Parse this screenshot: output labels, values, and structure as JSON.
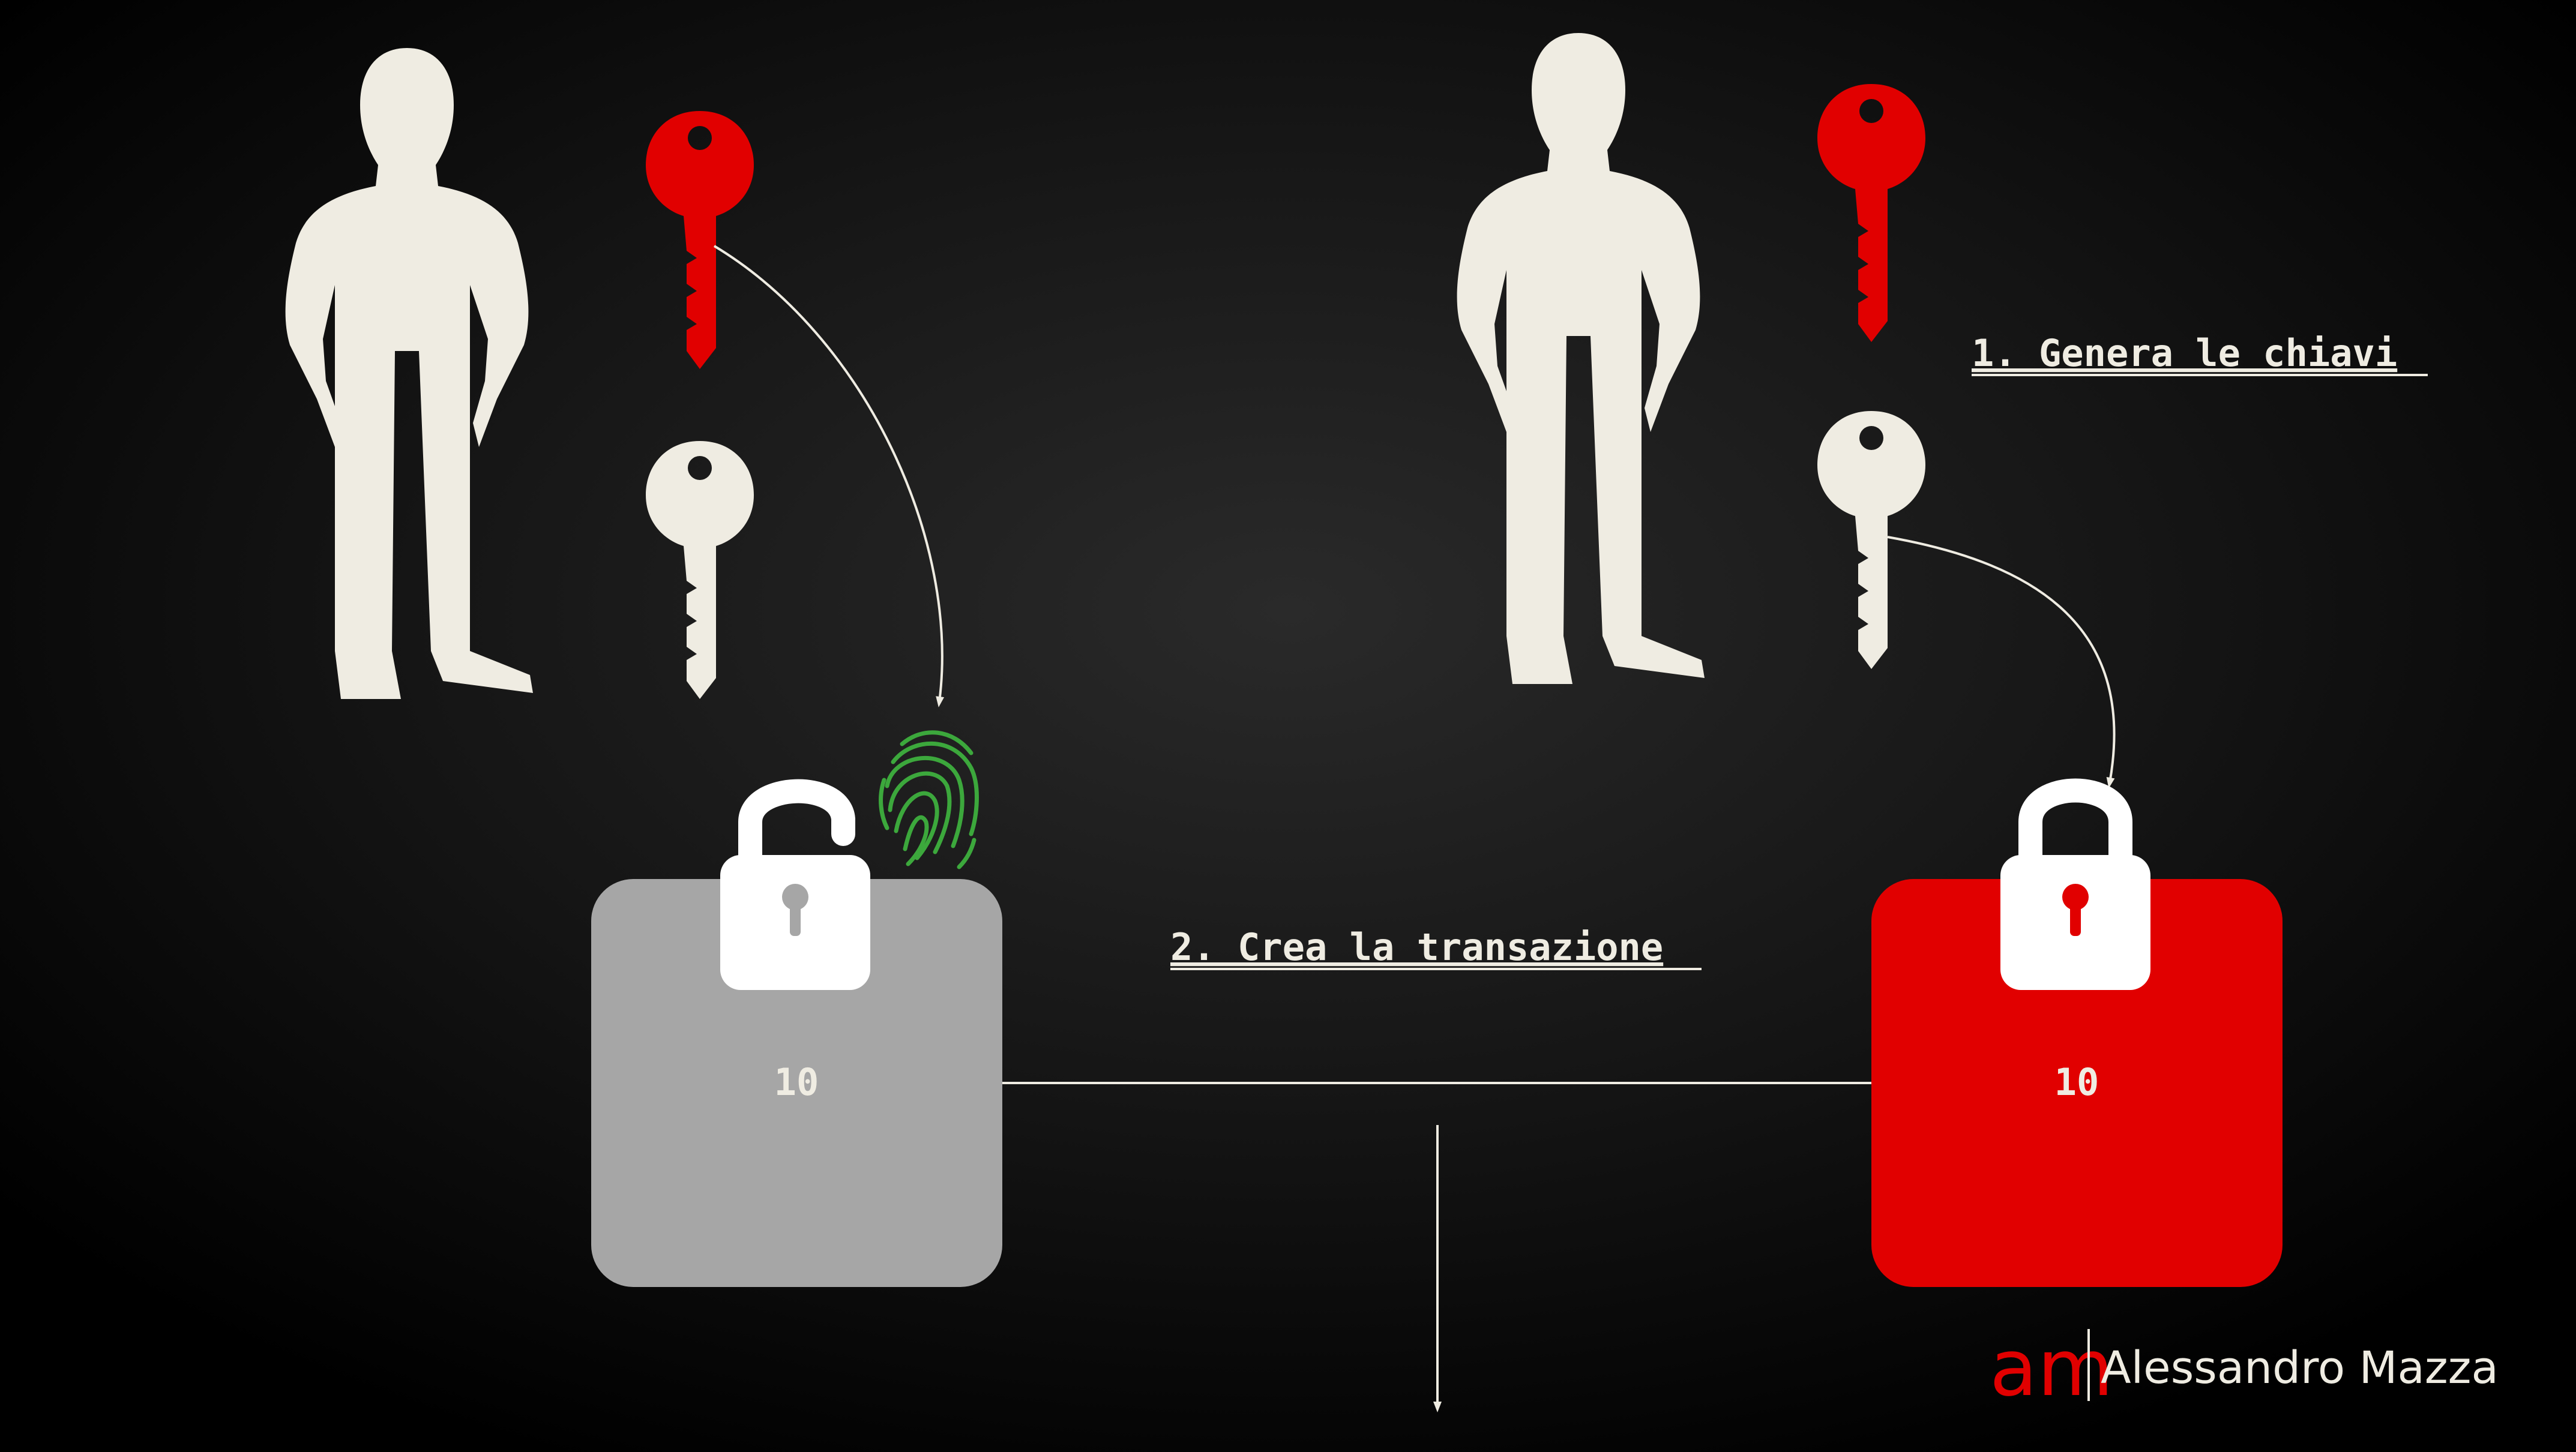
{
  "steps": {
    "generate_keys": "1. Genera le chiavi",
    "create_transaction": "2. Crea la transazione"
  },
  "boxes": {
    "left_value": "10",
    "right_value": "10"
  },
  "branding": {
    "logo_letters": "am",
    "author": "Alessandro Mazza"
  },
  "icons": {
    "left_person": "person-silhouette-icon",
    "right_person": "person-silhouette-icon",
    "left_private_key": "key-icon",
    "left_public_key": "key-icon",
    "right_private_key": "key-icon",
    "right_public_key": "key-icon",
    "left_padlock": "padlock-open-icon",
    "right_padlock": "padlock-closed-icon",
    "fingerprint": "fingerprint-icon"
  },
  "colors": {
    "background": "#000000",
    "silhouette": "#efece2",
    "private_key": "#e10000",
    "public_key": "#efece2",
    "left_box": "#a6a6a6",
    "right_box": "#e10000",
    "fingerprint": "#3ca83c",
    "text": "#efece2"
  }
}
